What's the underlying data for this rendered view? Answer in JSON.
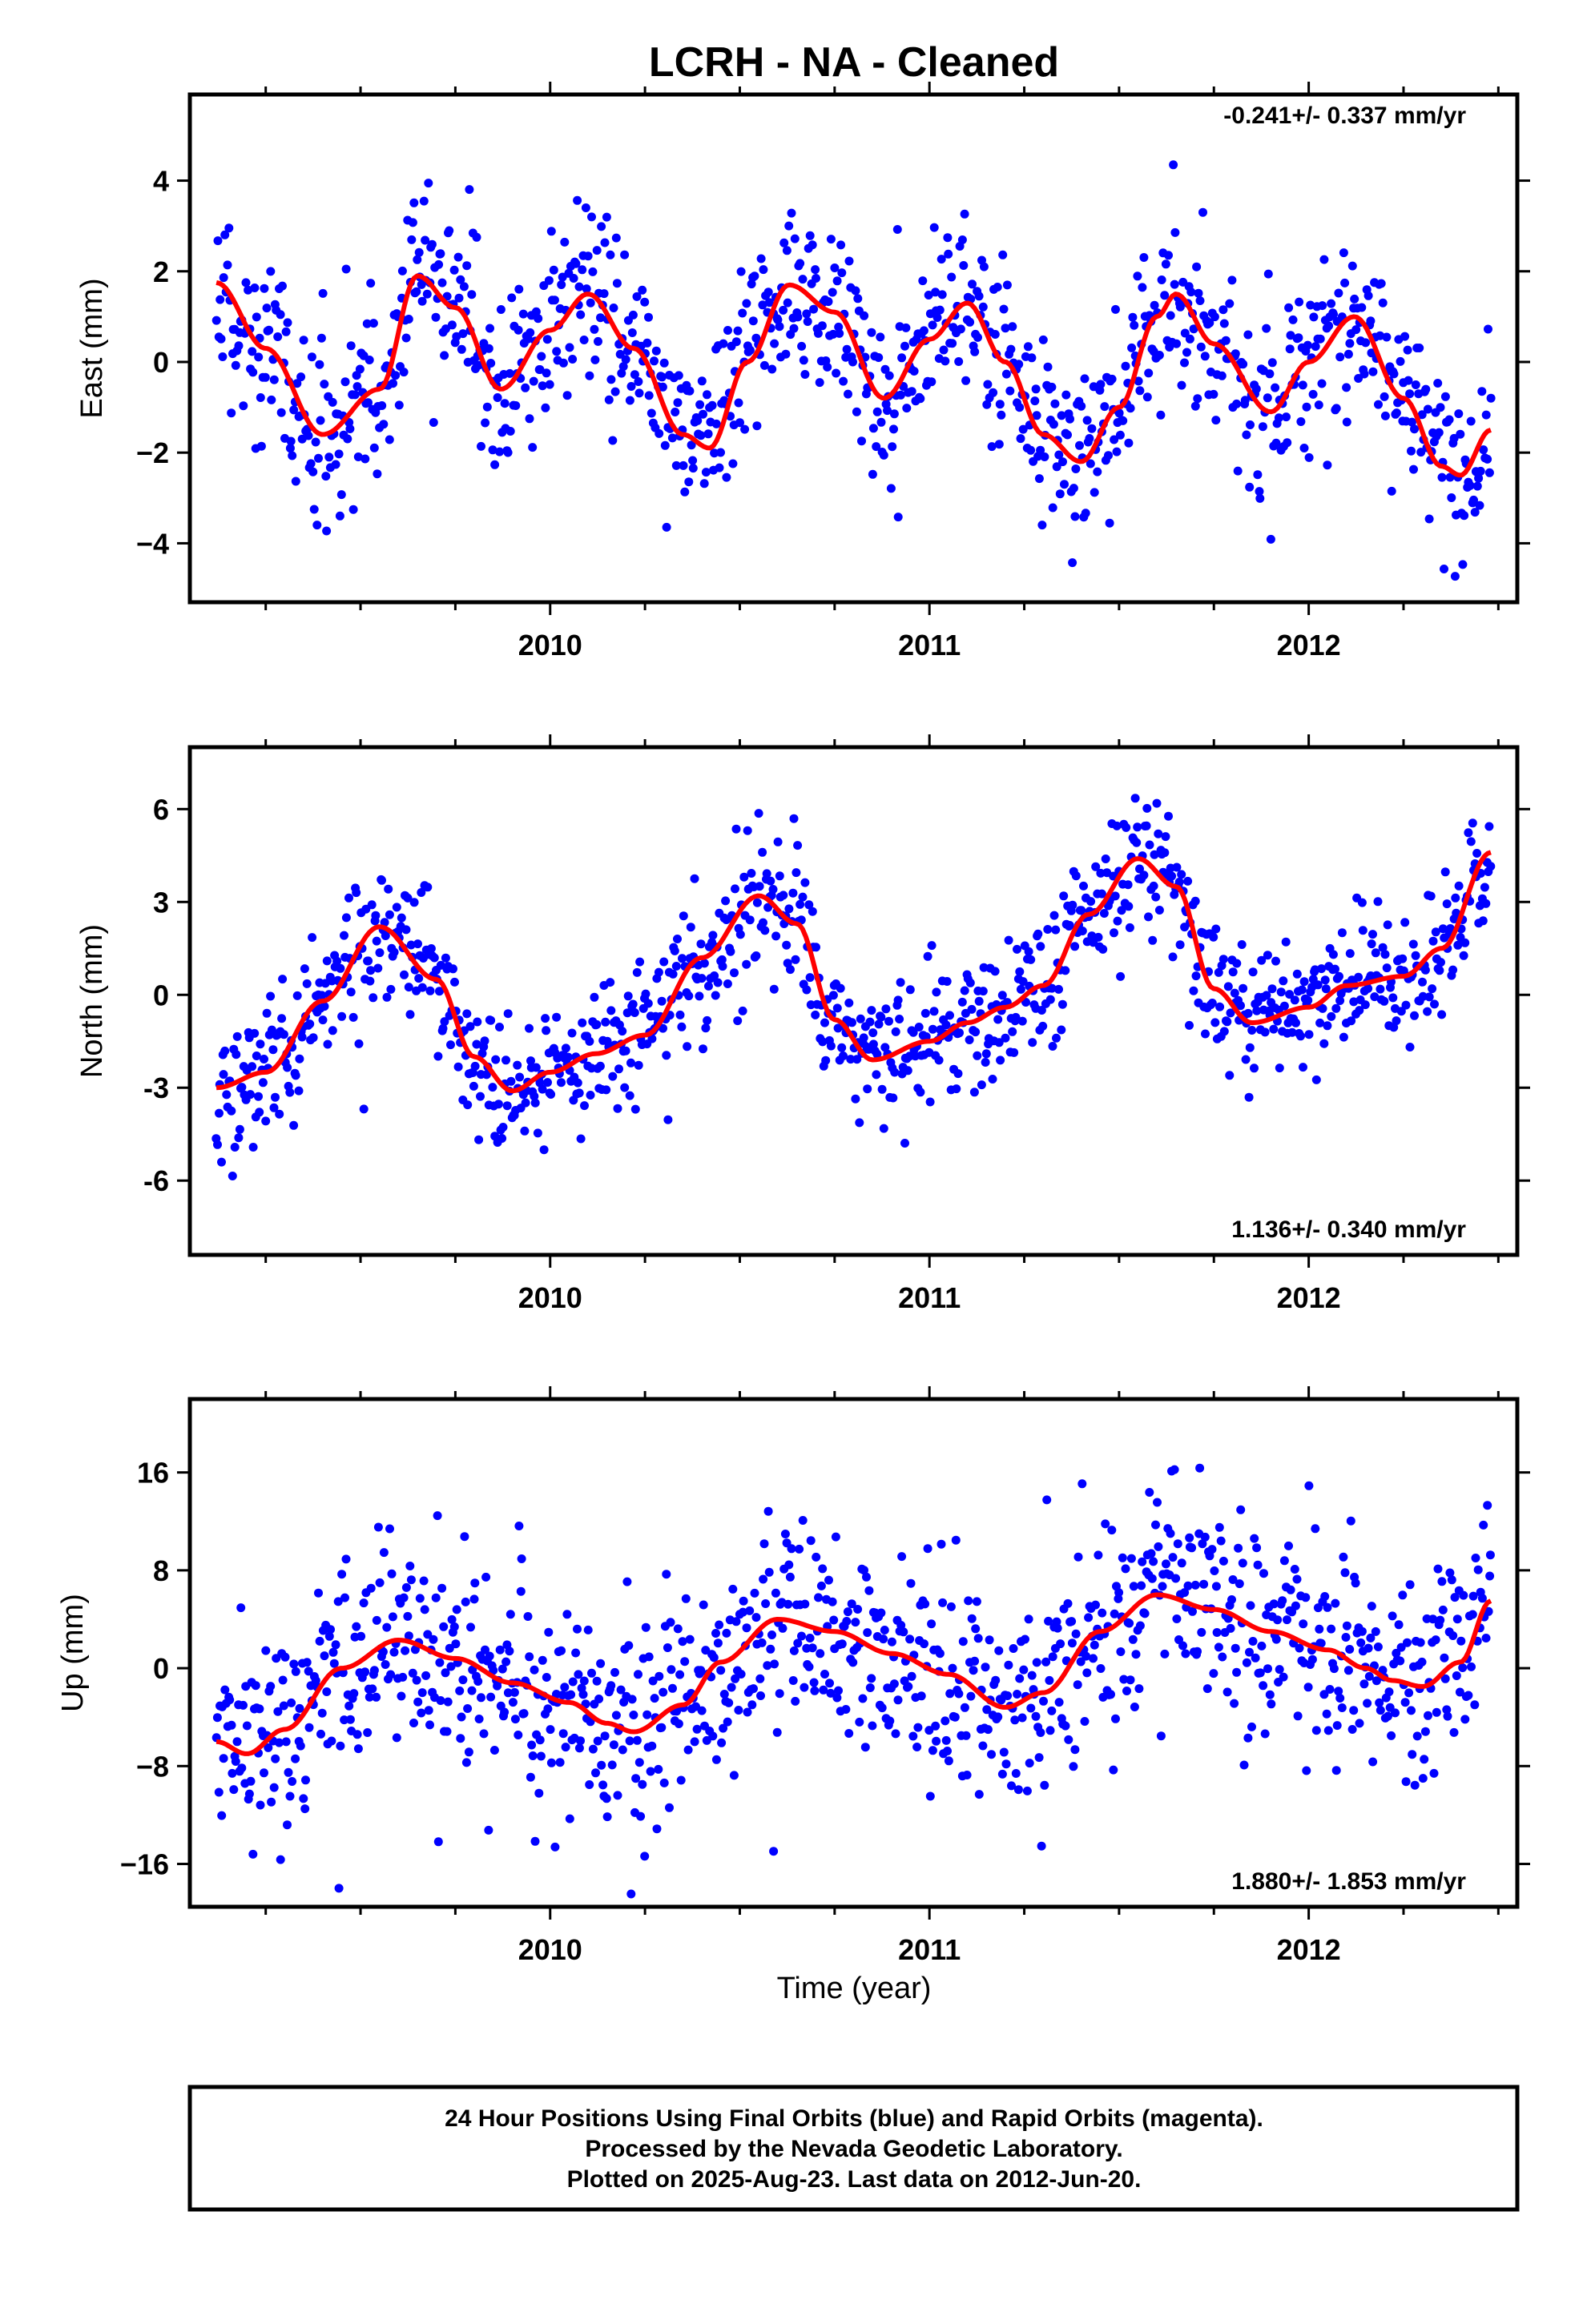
{
  "title": "LCRH  - NA - Cleaned",
  "xlabel": "Time (year)",
  "footer": {
    "line1": "24 Hour Positions Using Final Orbits (blue) and Rapid Orbits (magenta).",
    "line2": "Processed by the Nevada Geodetic Laboratory.",
    "line3": "Plotted on 2025-Aug-23. Last data on 2012-Jun-20."
  },
  "colors": {
    "points": "#0000ff",
    "fit": "#ff0000",
    "frame": "#000000"
  },
  "chart_data": [
    {
      "type": "scatter",
      "ylabel": "East (mm)",
      "rate": "-0.241+/- 0.337 mm/yr",
      "rate_position": "top-right",
      "xlim": [
        2009.05,
        2012.55
      ],
      "ylim": [
        -5.3,
        5.9
      ],
      "x_ticks": [
        2010,
        2011,
        2012
      ],
      "x_tick_labels": [
        "2010",
        "2011",
        "2012"
      ],
      "y_ticks": [
        -4,
        -2,
        0,
        2,
        4
      ],
      "y_tick_labels": [
        "−4",
        "−2",
        "0",
        "2",
        "4"
      ],
      "fit_x": [
        2009.12,
        2009.25,
        2009.4,
        2009.55,
        2009.65,
        2009.75,
        2009.87,
        2010.0,
        2010.1,
        2010.22,
        2010.35,
        2010.42,
        2010.52,
        2010.63,
        2010.75,
        2010.88,
        2011.0,
        2011.1,
        2011.2,
        2011.3,
        2011.4,
        2011.5,
        2011.6,
        2011.65,
        2011.75,
        2011.9,
        2012.0,
        2012.12,
        2012.25,
        2012.35,
        2012.4,
        2012.48
      ],
      "fit_y": [
        1.75,
        0.3,
        -1.6,
        -0.6,
        1.9,
        1.2,
        -0.6,
        0.7,
        1.5,
        0.3,
        -1.6,
        -1.9,
        0.0,
        1.7,
        1.1,
        -0.8,
        0.5,
        1.3,
        0.0,
        -1.6,
        -2.2,
        -1.0,
        1.0,
        1.5,
        0.4,
        -1.1,
        0.0,
        1.0,
        -0.8,
        -2.3,
        -2.5,
        -1.5
      ],
      "scatter": {
        "n": 1040,
        "x_range": [
          2009.12,
          2012.48
        ],
        "scatter_sigma": 0.95,
        "outlier_rate": 0.07,
        "seed": 11
      }
    },
    {
      "type": "scatter",
      "ylabel": "North (mm)",
      "rate": "1.136+/- 0.340 mm/yr",
      "rate_position": "bottom-right",
      "xlim": [
        2009.05,
        2012.55
      ],
      "ylim": [
        -8.4,
        8.0
      ],
      "x_ticks": [
        2010,
        2011,
        2012
      ],
      "x_tick_labels": [
        "2010",
        "2011",
        "2012"
      ],
      "y_ticks": [
        -6,
        -3,
        0,
        3,
        6
      ],
      "y_tick_labels": [
        "-6",
        "-3",
        "0",
        "3",
        "6"
      ],
      "fit_x": [
        2009.12,
        2009.25,
        2009.4,
        2009.55,
        2009.7,
        2009.8,
        2009.9,
        2010.0,
        2010.12,
        2010.25,
        2010.4,
        2010.55,
        2010.65,
        2010.75,
        2010.85,
        2011.0,
        2011.1,
        2011.2,
        2011.3,
        2011.42,
        2011.55,
        2011.65,
        2011.75,
        2011.85,
        2012.0,
        2012.1,
        2012.25,
        2012.35,
        2012.48
      ],
      "fit_y": [
        -3.0,
        -2.5,
        -0.2,
        2.2,
        0.5,
        -2.0,
        -3.1,
        -2.5,
        -1.9,
        -1.3,
        1.2,
        3.2,
        2.3,
        -0.8,
        -2.1,
        -1.5,
        -0.9,
        -0.4,
        0.3,
        2.6,
        4.4,
        3.5,
        0.2,
        -0.9,
        -0.4,
        0.3,
        0.6,
        1.5,
        4.6
      ],
      "scatter": {
        "n": 1040,
        "x_range": [
          2009.12,
          2012.48
        ],
        "scatter_sigma": 1.05,
        "outlier_rate": 0.06,
        "seed": 23
      }
    },
    {
      "type": "scatter",
      "ylabel": "Up (mm)",
      "rate": "1.880+/- 1.853 mm/yr",
      "rate_position": "bottom-right",
      "xlim": [
        2009.05,
        2012.55
      ],
      "ylim": [
        -19.5,
        22.0
      ],
      "x_ticks": [
        2010,
        2011,
        2012
      ],
      "x_tick_labels": [
        "2010",
        "2011",
        "2012"
      ],
      "y_ticks": [
        -16,
        -8,
        0,
        8,
        16
      ],
      "y_tick_labels": [
        "−16",
        "−8",
        "0",
        "8",
        "16"
      ],
      "fit_x": [
        2009.12,
        2009.2,
        2009.3,
        2009.45,
        2009.6,
        2009.75,
        2009.9,
        2010.05,
        2010.15,
        2010.22,
        2010.35,
        2010.45,
        2010.6,
        2010.75,
        2010.9,
        2011.05,
        2011.2,
        2011.3,
        2011.45,
        2011.6,
        2011.75,
        2011.9,
        2012.05,
        2012.15,
        2012.22,
        2012.3,
        2012.4,
        2012.48
      ],
      "fit_y": [
        -6.0,
        -7.0,
        -5.0,
        0.0,
        2.3,
        0.8,
        -1.2,
        -2.8,
        -4.5,
        -5.2,
        -3.0,
        0.5,
        4.0,
        3.0,
        1.2,
        -0.5,
        -3.2,
        -2.0,
        3.0,
        6.0,
        4.8,
        3.0,
        1.5,
        0.0,
        -1.0,
        -1.5,
        0.5,
        5.5
      ],
      "scatter": {
        "n": 1040,
        "x_range": [
          2009.12,
          2012.48
        ],
        "scatter_sigma": 4.3,
        "outlier_rate": 0.05,
        "seed": 37
      }
    }
  ]
}
